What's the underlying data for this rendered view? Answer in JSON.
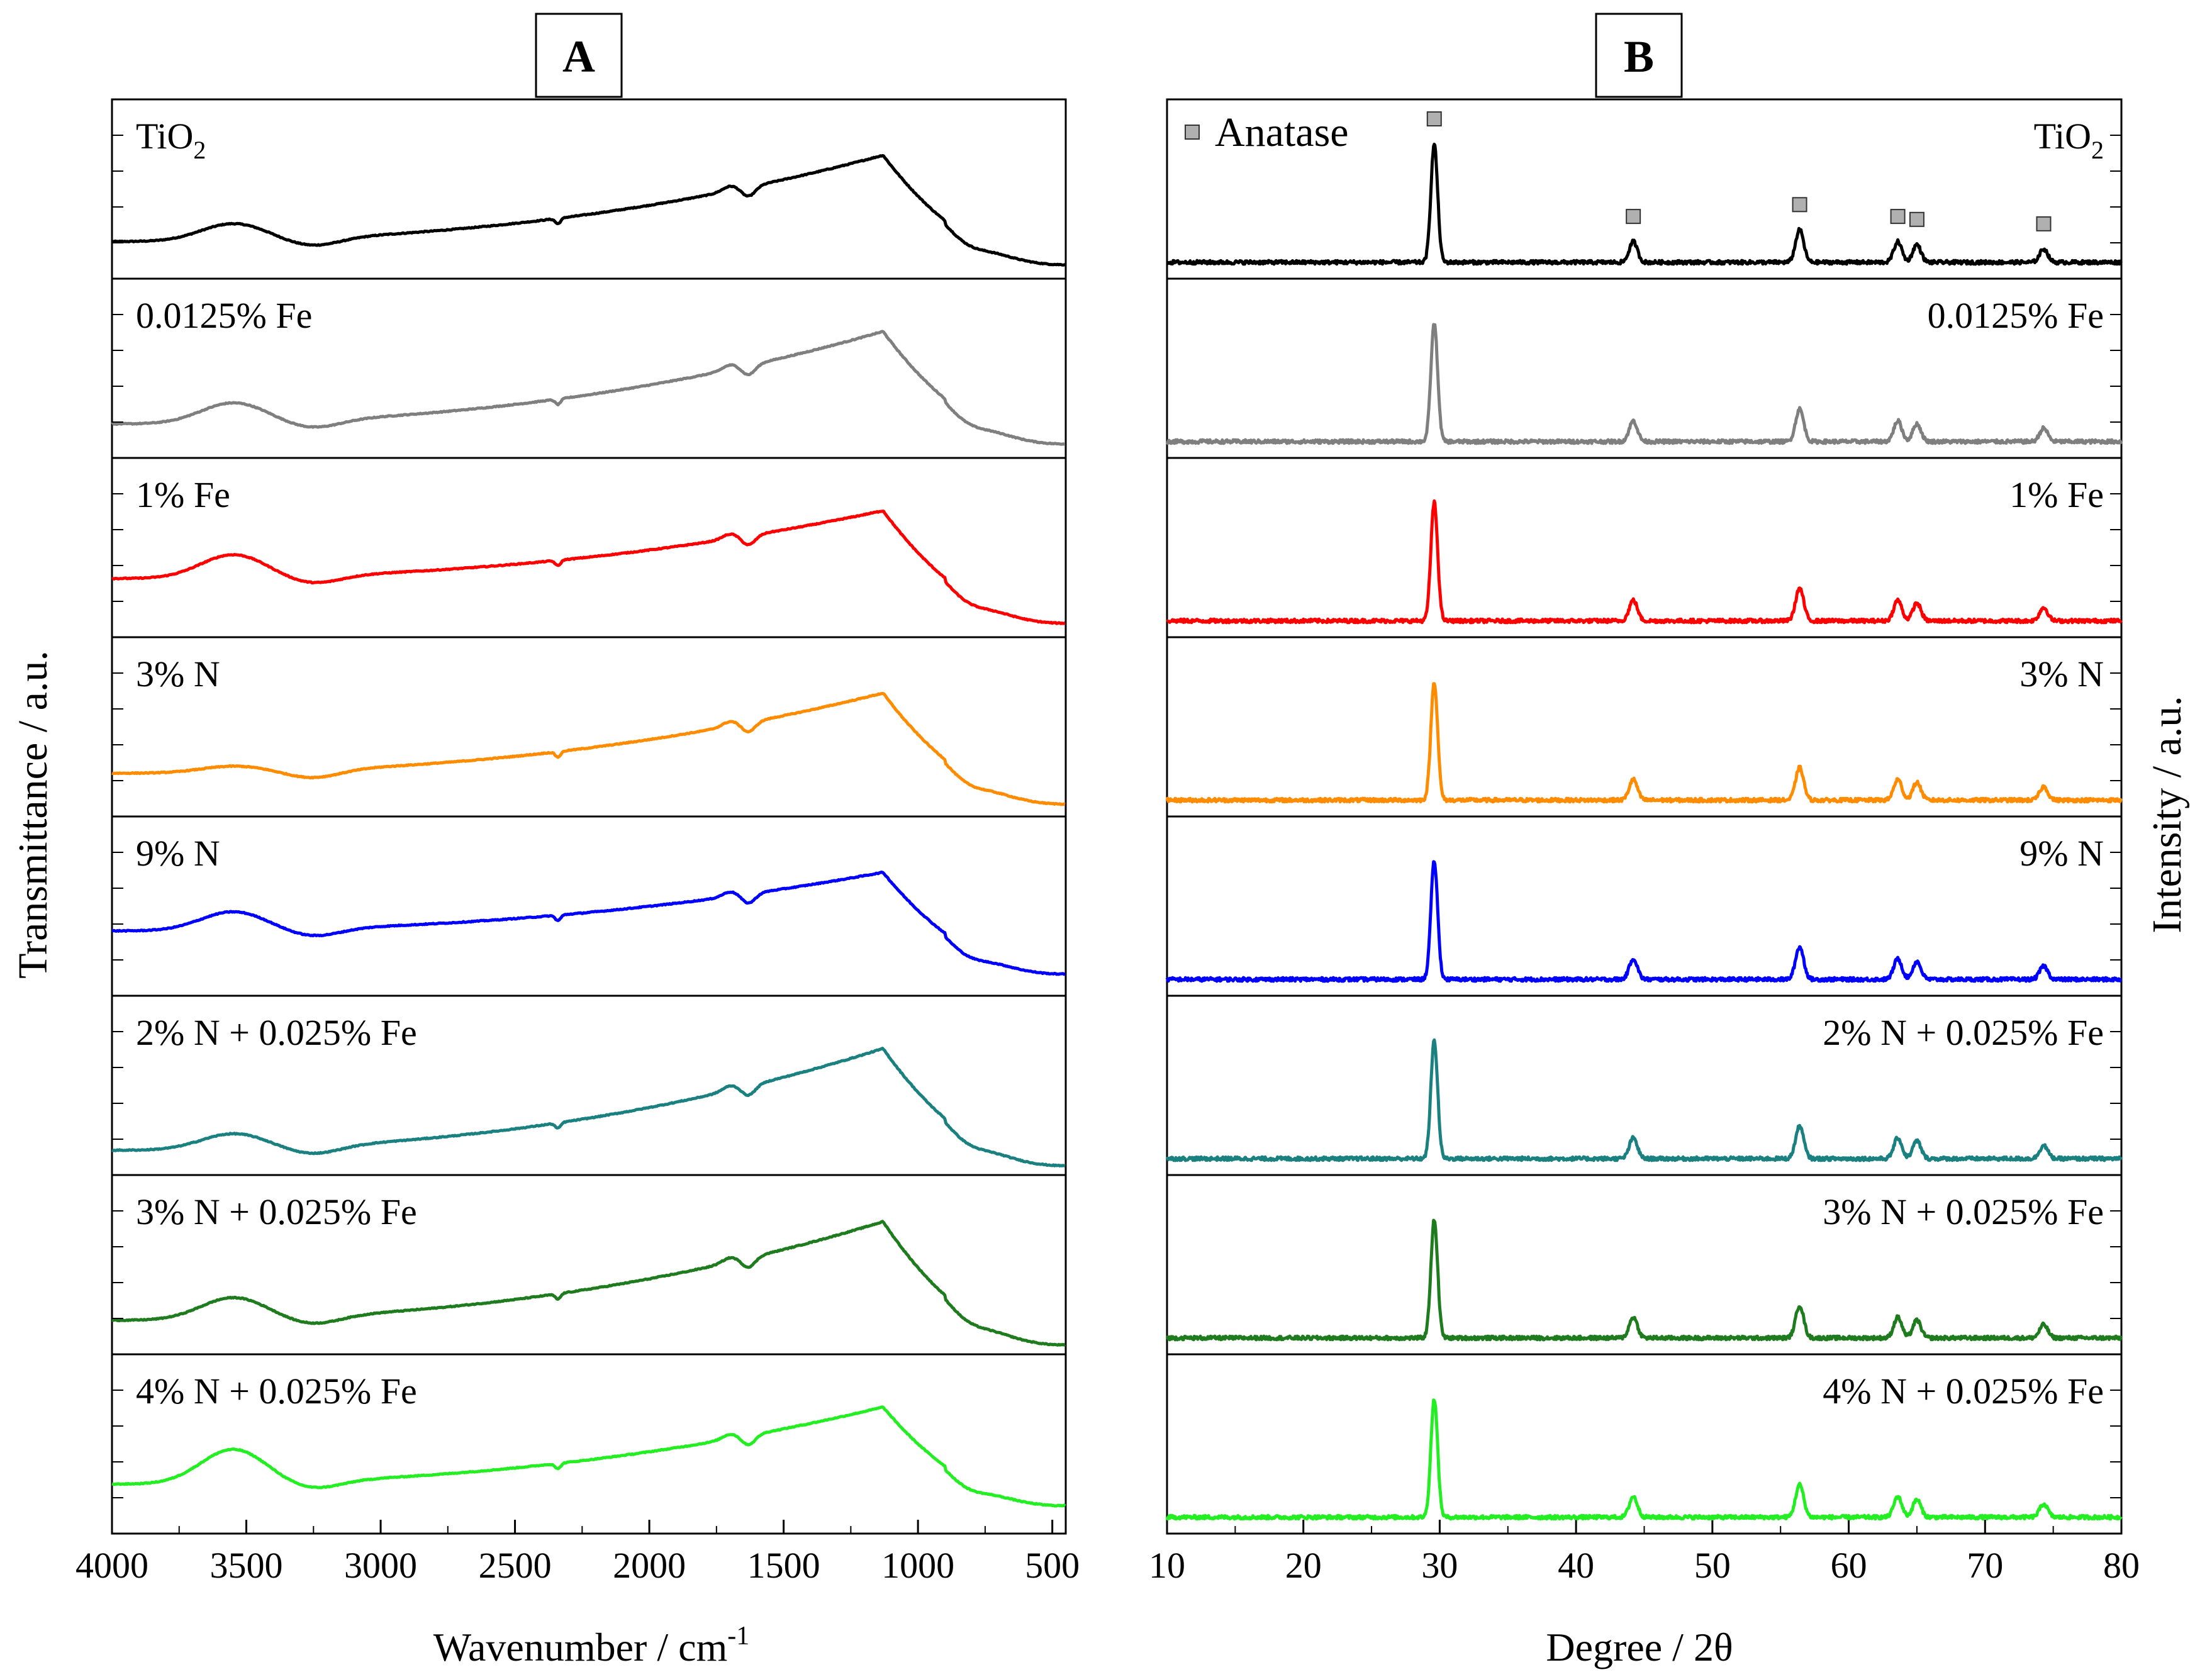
{
  "chart_data": [
    {
      "type": "line",
      "panel_label": "A",
      "xlabel": "Wavenumber / cm",
      "xlabel_sup": "-1",
      "ylabel": "Transmittance / a.u.",
      "xlim": [
        4000,
        450
      ],
      "x_ticks": [
        "4000",
        "3500",
        "3000",
        "2500",
        "2000",
        "1500",
        "1000",
        "500"
      ],
      "x_tick_values": [
        4000,
        3500,
        3000,
        2500,
        2000,
        1500,
        1000,
        500
      ],
      "features": {
        "shoulder_a": [
          3550,
          0.14
        ],
        "dip_a": [
          3250,
          0.0
        ],
        "dip_b": [
          2340,
          0.04
        ],
        "dip_c": [
          1630,
          0.05
        ],
        "peak": [
          1130,
          0.78
        ]
      },
      "series": [
        {
          "name": "TiO",
          "name_sub": "2",
          "color": "#000000",
          "start": 0.2,
          "peak": 0.76,
          "end": 0.05,
          "shoulder": 0.11
        },
        {
          "name": "0.0125% Fe",
          "color": "#7f7f7f",
          "start": 0.18,
          "peak": 0.78,
          "end": 0.05,
          "shoulder": 0.13
        },
        {
          "name": "1% Fe",
          "color": "#ff0000",
          "start": 0.34,
          "peak": 0.78,
          "end": 0.05,
          "shoulder": 0.15
        },
        {
          "name": "3% N",
          "color": "#ff8c00",
          "start": 0.24,
          "peak": 0.76,
          "end": 0.04,
          "shoulder": 0.04
        },
        {
          "name": "9% N",
          "color": "#0000ff",
          "start": 0.38,
          "peak": 0.76,
          "end": 0.1,
          "shoulder": 0.12
        },
        {
          "name": "2% N + 0.025% Fe",
          "color": "#1a8080",
          "start": 0.12,
          "peak": 0.78,
          "end": 0.02,
          "shoulder": 0.1
        },
        {
          "name": "3% N + 0.025% Fe",
          "color": "#1e7b1e",
          "start": 0.18,
          "peak": 0.82,
          "end": 0.02,
          "shoulder": 0.14
        },
        {
          "name": "4% N + 0.025% Fe",
          "color": "#22ee22",
          "start": 0.28,
          "peak": 0.78,
          "end": 0.14,
          "shoulder": 0.22
        }
      ]
    },
    {
      "type": "line",
      "panel_label": "B",
      "xlabel": "Degree / 2θ",
      "ylabel": "Intensity / a.u.",
      "xlim": [
        10,
        80
      ],
      "x_ticks": [
        "10",
        "20",
        "30",
        "40",
        "50",
        "60",
        "70",
        "80"
      ],
      "x_tick_values": [
        10,
        20,
        30,
        40,
        50,
        60,
        70,
        80
      ],
      "legend_marker": "Anatase",
      "anatase_peaks": [
        29.6,
        44.2,
        56.4,
        63.6,
        65.0,
        74.3
      ],
      "peak_heights": [
        0.8,
        0.14,
        0.22,
        0.14,
        0.12,
        0.09
      ],
      "series": [
        {
          "name": "TiO",
          "name_sub": "2",
          "color": "#000000"
        },
        {
          "name": "0.0125% Fe",
          "color": "#7f7f7f"
        },
        {
          "name": "1% Fe",
          "color": "#ff0000"
        },
        {
          "name": "3% N",
          "color": "#ff8c00"
        },
        {
          "name": "9% N",
          "color": "#0000ff"
        },
        {
          "name": "2% N + 0.025% Fe",
          "color": "#1a8080"
        },
        {
          "name": "3% N + 0.025% Fe",
          "color": "#1e7b1e"
        },
        {
          "name": "4% N + 0.025% Fe",
          "color": "#22ee22"
        }
      ]
    }
  ]
}
